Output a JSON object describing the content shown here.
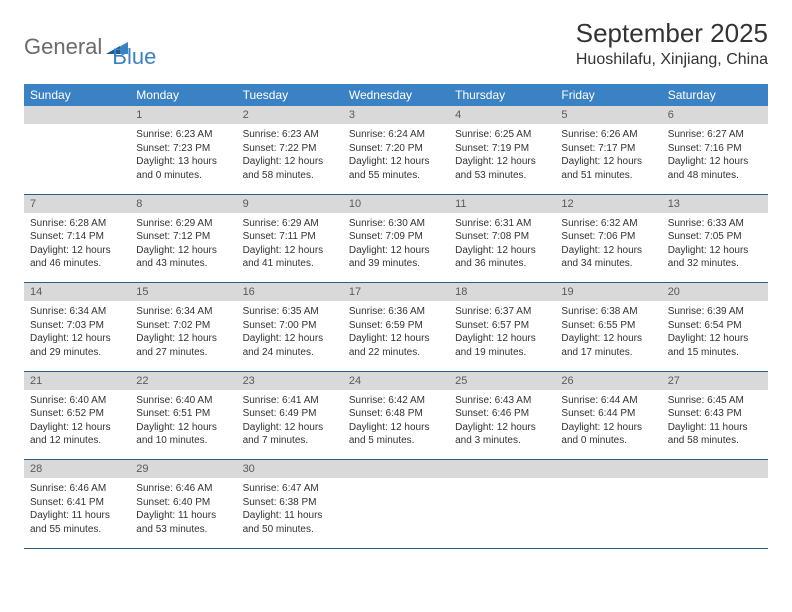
{
  "logo": {
    "text_gray": "General",
    "text_blue": "Blue"
  },
  "title": "September 2025",
  "location": "Huoshilafu, Xinjiang, China",
  "day_headers": [
    "Sunday",
    "Monday",
    "Tuesday",
    "Wednesday",
    "Thursday",
    "Friday",
    "Saturday"
  ],
  "colors": {
    "header_bg": "#3b82c4",
    "daynum_bg": "#d9d9d9",
    "rule": "#2b5f87",
    "text": "#333333"
  },
  "weeks": [
    {
      "nums": [
        "",
        "1",
        "2",
        "3",
        "4",
        "5",
        "6"
      ],
      "cells": [
        {
          "empty": true
        },
        {
          "sunrise": "Sunrise: 6:23 AM",
          "sunset": "Sunset: 7:23 PM",
          "daylight": "Daylight: 13 hours and 0 minutes."
        },
        {
          "sunrise": "Sunrise: 6:23 AM",
          "sunset": "Sunset: 7:22 PM",
          "daylight": "Daylight: 12 hours and 58 minutes."
        },
        {
          "sunrise": "Sunrise: 6:24 AM",
          "sunset": "Sunset: 7:20 PM",
          "daylight": "Daylight: 12 hours and 55 minutes."
        },
        {
          "sunrise": "Sunrise: 6:25 AM",
          "sunset": "Sunset: 7:19 PM",
          "daylight": "Daylight: 12 hours and 53 minutes."
        },
        {
          "sunrise": "Sunrise: 6:26 AM",
          "sunset": "Sunset: 7:17 PM",
          "daylight": "Daylight: 12 hours and 51 minutes."
        },
        {
          "sunrise": "Sunrise: 6:27 AM",
          "sunset": "Sunset: 7:16 PM",
          "daylight": "Daylight: 12 hours and 48 minutes."
        }
      ]
    },
    {
      "nums": [
        "7",
        "8",
        "9",
        "10",
        "11",
        "12",
        "13"
      ],
      "cells": [
        {
          "sunrise": "Sunrise: 6:28 AM",
          "sunset": "Sunset: 7:14 PM",
          "daylight": "Daylight: 12 hours and 46 minutes."
        },
        {
          "sunrise": "Sunrise: 6:29 AM",
          "sunset": "Sunset: 7:12 PM",
          "daylight": "Daylight: 12 hours and 43 minutes."
        },
        {
          "sunrise": "Sunrise: 6:29 AM",
          "sunset": "Sunset: 7:11 PM",
          "daylight": "Daylight: 12 hours and 41 minutes."
        },
        {
          "sunrise": "Sunrise: 6:30 AM",
          "sunset": "Sunset: 7:09 PM",
          "daylight": "Daylight: 12 hours and 39 minutes."
        },
        {
          "sunrise": "Sunrise: 6:31 AM",
          "sunset": "Sunset: 7:08 PM",
          "daylight": "Daylight: 12 hours and 36 minutes."
        },
        {
          "sunrise": "Sunrise: 6:32 AM",
          "sunset": "Sunset: 7:06 PM",
          "daylight": "Daylight: 12 hours and 34 minutes."
        },
        {
          "sunrise": "Sunrise: 6:33 AM",
          "sunset": "Sunset: 7:05 PM",
          "daylight": "Daylight: 12 hours and 32 minutes."
        }
      ]
    },
    {
      "nums": [
        "14",
        "15",
        "16",
        "17",
        "18",
        "19",
        "20"
      ],
      "cells": [
        {
          "sunrise": "Sunrise: 6:34 AM",
          "sunset": "Sunset: 7:03 PM",
          "daylight": "Daylight: 12 hours and 29 minutes."
        },
        {
          "sunrise": "Sunrise: 6:34 AM",
          "sunset": "Sunset: 7:02 PM",
          "daylight": "Daylight: 12 hours and 27 minutes."
        },
        {
          "sunrise": "Sunrise: 6:35 AM",
          "sunset": "Sunset: 7:00 PM",
          "daylight": "Daylight: 12 hours and 24 minutes."
        },
        {
          "sunrise": "Sunrise: 6:36 AM",
          "sunset": "Sunset: 6:59 PM",
          "daylight": "Daylight: 12 hours and 22 minutes."
        },
        {
          "sunrise": "Sunrise: 6:37 AM",
          "sunset": "Sunset: 6:57 PM",
          "daylight": "Daylight: 12 hours and 19 minutes."
        },
        {
          "sunrise": "Sunrise: 6:38 AM",
          "sunset": "Sunset: 6:55 PM",
          "daylight": "Daylight: 12 hours and 17 minutes."
        },
        {
          "sunrise": "Sunrise: 6:39 AM",
          "sunset": "Sunset: 6:54 PM",
          "daylight": "Daylight: 12 hours and 15 minutes."
        }
      ]
    },
    {
      "nums": [
        "21",
        "22",
        "23",
        "24",
        "25",
        "26",
        "27"
      ],
      "cells": [
        {
          "sunrise": "Sunrise: 6:40 AM",
          "sunset": "Sunset: 6:52 PM",
          "daylight": "Daylight: 12 hours and 12 minutes."
        },
        {
          "sunrise": "Sunrise: 6:40 AM",
          "sunset": "Sunset: 6:51 PM",
          "daylight": "Daylight: 12 hours and 10 minutes."
        },
        {
          "sunrise": "Sunrise: 6:41 AM",
          "sunset": "Sunset: 6:49 PM",
          "daylight": "Daylight: 12 hours and 7 minutes."
        },
        {
          "sunrise": "Sunrise: 6:42 AM",
          "sunset": "Sunset: 6:48 PM",
          "daylight": "Daylight: 12 hours and 5 minutes."
        },
        {
          "sunrise": "Sunrise: 6:43 AM",
          "sunset": "Sunset: 6:46 PM",
          "daylight": "Daylight: 12 hours and 3 minutes."
        },
        {
          "sunrise": "Sunrise: 6:44 AM",
          "sunset": "Sunset: 6:44 PM",
          "daylight": "Daylight: 12 hours and 0 minutes."
        },
        {
          "sunrise": "Sunrise: 6:45 AM",
          "sunset": "Sunset: 6:43 PM",
          "daylight": "Daylight: 11 hours and 58 minutes."
        }
      ]
    },
    {
      "nums": [
        "28",
        "29",
        "30",
        "",
        "",
        "",
        ""
      ],
      "cells": [
        {
          "sunrise": "Sunrise: 6:46 AM",
          "sunset": "Sunset: 6:41 PM",
          "daylight": "Daylight: 11 hours and 55 minutes."
        },
        {
          "sunrise": "Sunrise: 6:46 AM",
          "sunset": "Sunset: 6:40 PM",
          "daylight": "Daylight: 11 hours and 53 minutes."
        },
        {
          "sunrise": "Sunrise: 6:47 AM",
          "sunset": "Sunset: 6:38 PM",
          "daylight": "Daylight: 11 hours and 50 minutes."
        },
        {
          "empty": true
        },
        {
          "empty": true
        },
        {
          "empty": true
        },
        {
          "empty": true
        }
      ]
    }
  ]
}
